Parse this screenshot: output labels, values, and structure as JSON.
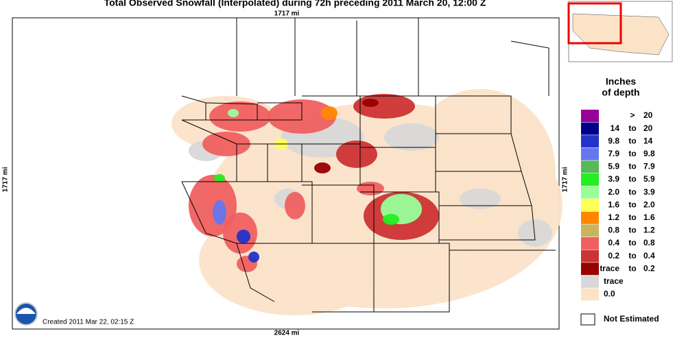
{
  "header": {
    "title": "Total Observed Snowfall (Interpolated) during 72h preceding 2011 March 20, 12:00 Z"
  },
  "map": {
    "top_scale": "1717 mi",
    "bottom_scale": "2624 mi",
    "left_scale": "1717 mi",
    "right_scale": "1717 mi",
    "created": "Created 2011 Mar 22, 02:15 Z"
  },
  "legend": {
    "title_line1": "Inches",
    "title_line2": "of depth",
    "items": [
      {
        "color": "#990099",
        "sep": ">",
        "max": "20"
      },
      {
        "color": "#00008b",
        "min": "14",
        "sep": "to",
        "max": "20"
      },
      {
        "color": "#2233cc",
        "min": "9.8",
        "sep": "to",
        "max": "14"
      },
      {
        "color": "#6677ee",
        "min": "7.9",
        "sep": "to",
        "max": "9.8"
      },
      {
        "color": "#55bb55",
        "min": "5.9",
        "sep": "to",
        "max": "7.9"
      },
      {
        "color": "#22ee22",
        "min": "3.9",
        "sep": "to",
        "max": "5.9"
      },
      {
        "color": "#99ff99",
        "min": "2.0",
        "sep": "to",
        "max": "3.9"
      },
      {
        "color": "#ffff55",
        "min": "1.6",
        "sep": "to",
        "max": "2.0"
      },
      {
        "color": "#ff8800",
        "min": "1.2",
        "sep": "to",
        "max": "1.6"
      },
      {
        "color": "#c8b45a",
        "min": "0.8",
        "sep": "to",
        "max": "1.2"
      },
      {
        "color": "#f06060",
        "min": "0.4",
        "sep": "to",
        "max": "0.8"
      },
      {
        "color": "#cc3333",
        "min": "0.2",
        "sep": "to",
        "max": "0.4"
      },
      {
        "color": "#990000",
        "min": "trace",
        "sep": "to",
        "max": "0.2"
      },
      {
        "color": "#d8d8d8",
        "label": "trace"
      },
      {
        "color": "#fbe3c8",
        "label": "0.0"
      }
    ],
    "not_estimated": "Not Estimated"
  }
}
